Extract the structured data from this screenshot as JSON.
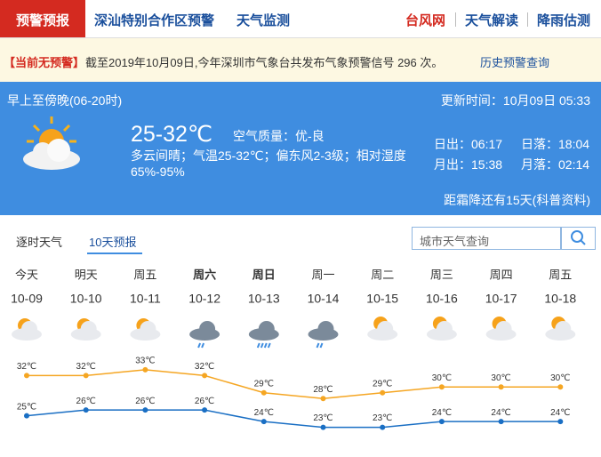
{
  "nav": {
    "tabs": [
      "预警预报",
      "深汕特别合作区预警",
      "天气监测"
    ],
    "links": [
      "台风网",
      "天气解读",
      "降雨估测"
    ]
  },
  "alert": {
    "status": "【当前无预警】",
    "message": "截至2019年10月09日,今年深圳市气象台共发布气象预警信号 296 次。",
    "link": "历史预警查询"
  },
  "today": {
    "period": "早上至傍晚(06-20时)",
    "updated": "更新时间：10月09日 05:33",
    "temperature": "25-32℃",
    "air_quality": "空气质量：优-良",
    "description": "多云间晴；气温25-32℃；偏东风2-3级；相对湿度65%-95%",
    "sunrise": "日出：06:17",
    "sunset": "日落：18:04",
    "moonrise": "月出：15:38",
    "moonset": "月落：02:14",
    "note": "距霜降还有15天(科普资料)"
  },
  "tabs": {
    "items": [
      "逐时天气",
      "10天预报"
    ],
    "search_placeholder": "城市天气查询"
  },
  "chart_data": {
    "type": "line",
    "weekdays": [
      "今天",
      "明天",
      "周五",
      "周六",
      "周日",
      "周一",
      "周二",
      "周三",
      "周四",
      "周五"
    ],
    "categories": [
      "10-09",
      "10-10",
      "10-11",
      "10-12",
      "10-13",
      "10-14",
      "10-15",
      "10-16",
      "10-17",
      "10-18"
    ],
    "ylim": [
      20,
      37
    ],
    "series": [
      {
        "name": "high",
        "color": "#f5a623",
        "values": [
          32,
          32,
          33,
          32,
          29,
          28,
          29,
          30,
          30,
          30
        ],
        "value_labels": [
          "32℃",
          "32℃",
          "33℃",
          "32℃",
          "29℃",
          "28℃",
          "29℃",
          "30℃",
          "30℃",
          "30℃"
        ]
      },
      {
        "name": "low",
        "color": "#1a6fc4",
        "values": [
          25,
          26,
          26,
          26,
          24,
          23,
          23,
          24,
          24,
          24
        ],
        "value_labels": [
          "25℃",
          "26℃",
          "26℃",
          "26℃",
          "24℃",
          "23℃",
          "23℃",
          "24℃",
          "24℃",
          "24℃"
        ]
      }
    ]
  }
}
